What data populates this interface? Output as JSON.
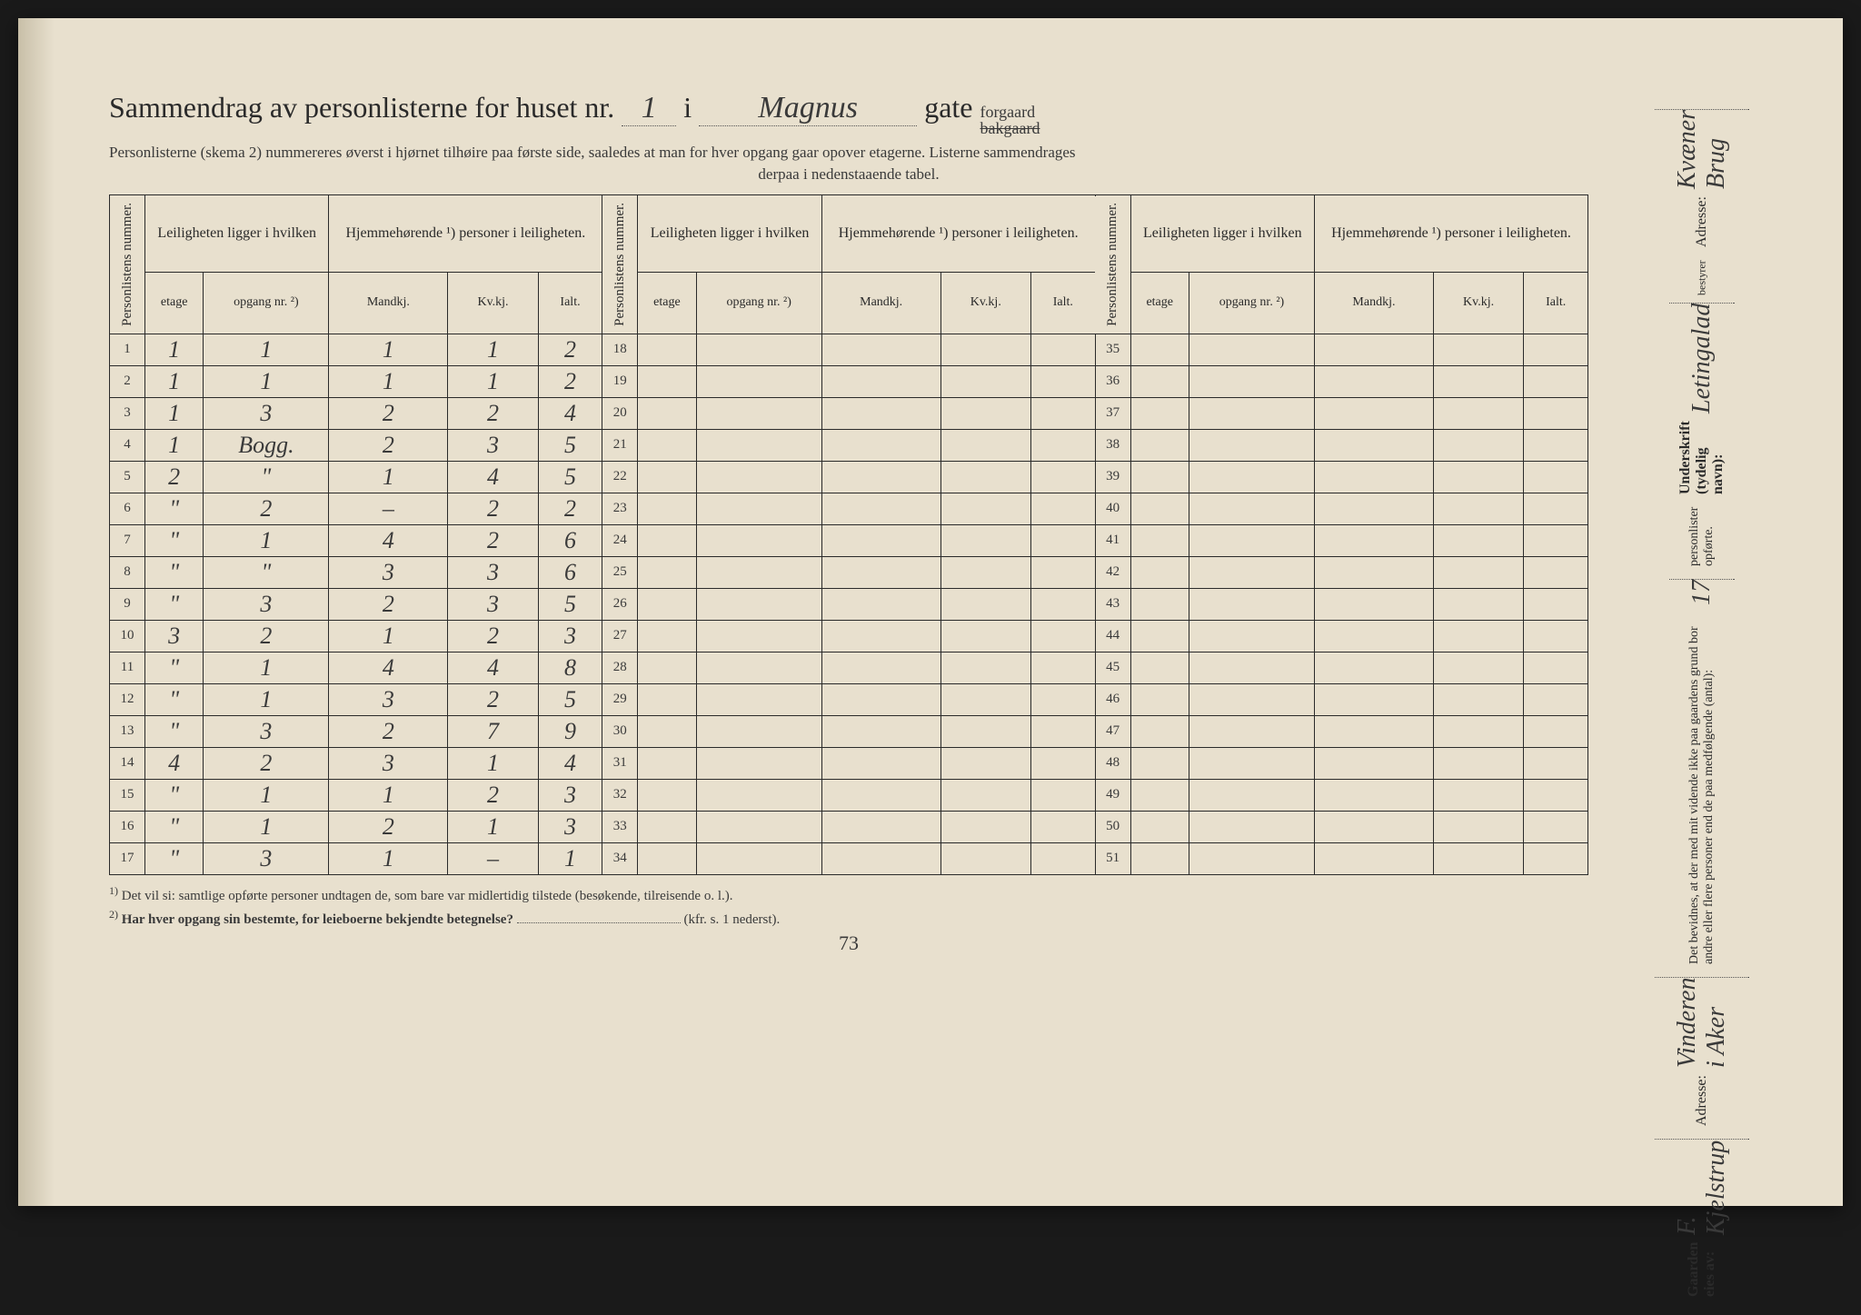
{
  "header": {
    "title_prefix": "Sammendrag av personlisterne for huset nr.",
    "house_nr": "1",
    "sep": "i",
    "street": "Magnus",
    "street_label": "gate",
    "forgaard": "forgaard",
    "bakgaard": "bakgaard",
    "subtitle": "Personlisterne (skema 2) nummereres øverst i hjørnet tilhøire paa første side, saaledes at man for hver opgang gaar opover etagerne.  Listerne sammendrages",
    "subtitle2": "derpaa i nedenstaaende tabel."
  },
  "table": {
    "col_personlistens": "Personlistens nummer.",
    "col_leiligheten": "Leiligheten ligger i hvilken",
    "col_hjemme": "Hjemmehørende ¹) personer i leiligheten.",
    "sub_etage": "etage",
    "sub_opgang": "opgang nr. ²)",
    "sub_mandkj": "Mandkj.",
    "sub_kvkj": "Kv.kj.",
    "sub_ialt": "Ialt.",
    "rows": [
      {
        "n": "1",
        "etage": "1",
        "opg": "1",
        "m": "1",
        "k": "1",
        "i": "2"
      },
      {
        "n": "2",
        "etage": "1",
        "opg": "1",
        "m": "1",
        "k": "1",
        "i": "2"
      },
      {
        "n": "3",
        "etage": "1",
        "opg": "3",
        "m": "2",
        "k": "2",
        "i": "4"
      },
      {
        "n": "4",
        "etage": "1",
        "opg": "Bogg.",
        "m": "2",
        "k": "3",
        "i": "5"
      },
      {
        "n": "5",
        "etage": "2",
        "opg": "\"",
        "m": "1",
        "k": "4",
        "i": "5"
      },
      {
        "n": "6",
        "etage": "\"",
        "opg": "2",
        "m": "–",
        "k": "2",
        "i": "2"
      },
      {
        "n": "7",
        "etage": "\"",
        "opg": "1",
        "m": "4",
        "k": "2",
        "i": "6"
      },
      {
        "n": "8",
        "etage": "\"",
        "opg": "\"",
        "m": "3",
        "k": "3",
        "i": "6"
      },
      {
        "n": "9",
        "etage": "\"",
        "opg": "3",
        "m": "2",
        "k": "3",
        "i": "5"
      },
      {
        "n": "10",
        "etage": "3",
        "opg": "2",
        "m": "1",
        "k": "2",
        "i": "3"
      },
      {
        "n": "11",
        "etage": "\"",
        "opg": "1",
        "m": "4",
        "k": "4",
        "i": "8"
      },
      {
        "n": "12",
        "etage": "\"",
        "opg": "1",
        "m": "3",
        "k": "2",
        "i": "5"
      },
      {
        "n": "13",
        "etage": "\"",
        "opg": "3",
        "m": "2",
        "k": "7",
        "i": "9"
      },
      {
        "n": "14",
        "etage": "4",
        "opg": "2",
        "m": "3",
        "k": "1",
        "i": "4"
      },
      {
        "n": "15",
        "etage": "\"",
        "opg": "1",
        "m": "1",
        "k": "2",
        "i": "3"
      },
      {
        "n": "16",
        "etage": "\"",
        "opg": "1",
        "m": "2",
        "k": "1",
        "i": "3"
      },
      {
        "n": "17",
        "etage": "\"",
        "opg": "3",
        "m": "1",
        "k": "–",
        "i": "1"
      }
    ],
    "mid_start": 18,
    "mid_end": 34,
    "right_start": 35,
    "right_end": 51
  },
  "footnotes": {
    "f1": "Det vil si: samtlige opførte personer undtagen de, som bare var midlertidig tilstede (besøkende, tilreisende o. l.).",
    "f2": "Har hver opgang sin bestemte, for leieboerne bekjendte betegnelse?",
    "f2_suffix": "(kfr. s. 1 nederst).",
    "page_mark": "73"
  },
  "rightcol": {
    "line1_label": "Gaarden eies av:",
    "line1_val": "F. Kjelstrup",
    "line2_label": "Adresse:",
    "line2_val": "Vinderen i Aker",
    "line3_text": "Det bevidnes, at der med mit vidende ikke paa gaardens grund bor andre eller flere personer end de paa medfølgende (antal):",
    "line3_count": "17",
    "line3_suffix": "personlister opførte.",
    "line4_label": "Underskrift (tydelig navn):",
    "line4_role": "bestyrer",
    "line4_val": "Letingalad",
    "line5_label": "Adresse:",
    "line5_val": "Kvæner Brug"
  },
  "colors": {
    "paper": "#e8e0ce",
    "ink_print": "#2a2a2a",
    "ink_hand": "#3a3a3a",
    "background": "#1a1a1a"
  }
}
